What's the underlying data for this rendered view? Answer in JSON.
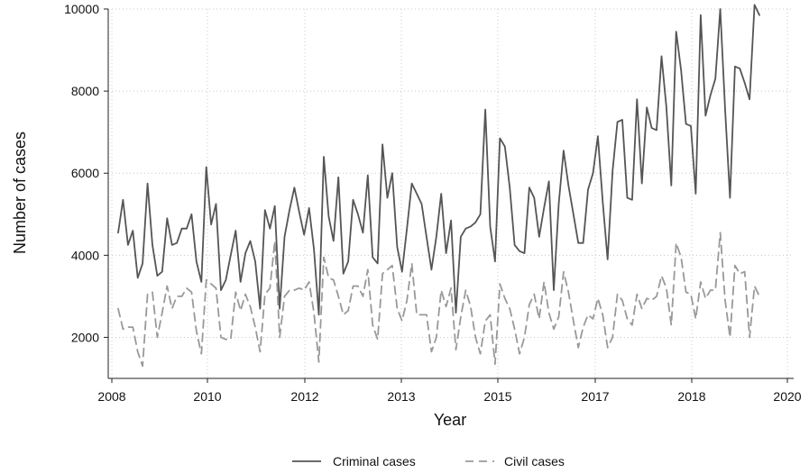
{
  "chart_data": {
    "type": "line",
    "title": "",
    "xlabel": "Year",
    "ylabel": "Number of cases",
    "ylim": [
      1000,
      10000
    ],
    "yticks": [
      2000,
      4000,
      6000,
      8000,
      10000
    ],
    "ytick_labels": [
      "2000",
      "4000",
      "6000",
      "8000",
      "10000"
    ],
    "xticks": [
      2008,
      2010,
      2012,
      2013,
      2015,
      2017,
      2018,
      2020
    ],
    "xtick_labels": [
      "2008",
      "2010",
      "2012",
      "2013",
      "2015",
      "2017",
      "2018",
      "2020"
    ],
    "grid": true,
    "legend_position": "bottom",
    "series": [
      {
        "name": "Criminal cases",
        "color": "#555555",
        "dash": "solid",
        "values": [
          4550,
          5350,
          4250,
          4600,
          3450,
          3800,
          5750,
          4250,
          3500,
          3600,
          4900,
          4250,
          4300,
          4650,
          4650,
          5000,
          3850,
          3350,
          6150,
          4750,
          5250,
          3150,
          3400,
          4000,
          4600,
          3350,
          4050,
          4350,
          3850,
          2700,
          5100,
          4650,
          5200,
          2700,
          4450,
          5100,
          5650,
          5050,
          4500,
          5150,
          4150,
          2550,
          6400,
          4950,
          4350,
          5900,
          3550,
          3850,
          5350,
          5000,
          4550,
          5950,
          3950,
          3800,
          6700,
          5400,
          6000,
          4200,
          3600,
          4650,
          5750,
          5500,
          5250,
          4450,
          3650,
          4450,
          5500,
          4050,
          4850,
          2600,
          4450,
          4650,
          4700,
          4800,
          5000,
          7550,
          4700,
          3850,
          6850,
          6650,
          5650,
          4250,
          4100,
          4050,
          5650,
          5400,
          4450,
          5150,
          5800,
          3150,
          5250,
          6550,
          5700,
          5000,
          4300,
          4300,
          5600,
          6000,
          6900,
          5300,
          3900,
          6050,
          7250,
          7300,
          5400,
          5350,
          7800,
          5750,
          7600,
          7100,
          7050,
          8850,
          7600,
          5700,
          9450,
          8500,
          7200,
          7150,
          5500,
          9850,
          7400,
          7900,
          8300,
          10000,
          7550,
          5400,
          8600,
          8550,
          8200,
          7800,
          10100,
          9850
        ]
      },
      {
        "name": "Civil cases",
        "color": "#999999",
        "dash": "dashed",
        "values": [
          2700,
          2200,
          2250,
          2250,
          1650,
          1300,
          3050,
          3100,
          2000,
          2600,
          3250,
          2700,
          3000,
          3000,
          3200,
          3100,
          2150,
          1600,
          3400,
          3300,
          3200,
          2000,
          1950,
          1950,
          3100,
          2650,
          3050,
          2750,
          2250,
          1650,
          3050,
          3200,
          4350,
          2000,
          3000,
          3150,
          3150,
          3200,
          3150,
          3350,
          2600,
          1400,
          3950,
          3450,
          3400,
          3000,
          2550,
          2650,
          3250,
          3250,
          3000,
          3650,
          2300,
          1950,
          3550,
          3650,
          3750,
          2700,
          2400,
          2900,
          3800,
          2550,
          2550,
          2550,
          1650,
          2000,
          3150,
          2750,
          3200,
          1700,
          2500,
          3150,
          2750,
          2000,
          1600,
          2400,
          2550,
          1350,
          3300,
          2950,
          2700,
          2200,
          1600,
          2000,
          2800,
          3050,
          2450,
          3350,
          2600,
          2200,
          2500,
          3600,
          3100,
          2400,
          1750,
          2250,
          2550,
          2450,
          2950,
          2550,
          1750,
          2000,
          3050,
          2900,
          2450,
          2300,
          3050,
          2700,
          2950,
          2900,
          3000,
          3500,
          3200,
          2300,
          4300,
          3950,
          3100,
          3050,
          2450,
          3350,
          2950,
          3150,
          3150,
          4550,
          2900,
          2000,
          3750,
          3550,
          3600,
          2000,
          3250,
          3000
        ]
      }
    ]
  }
}
